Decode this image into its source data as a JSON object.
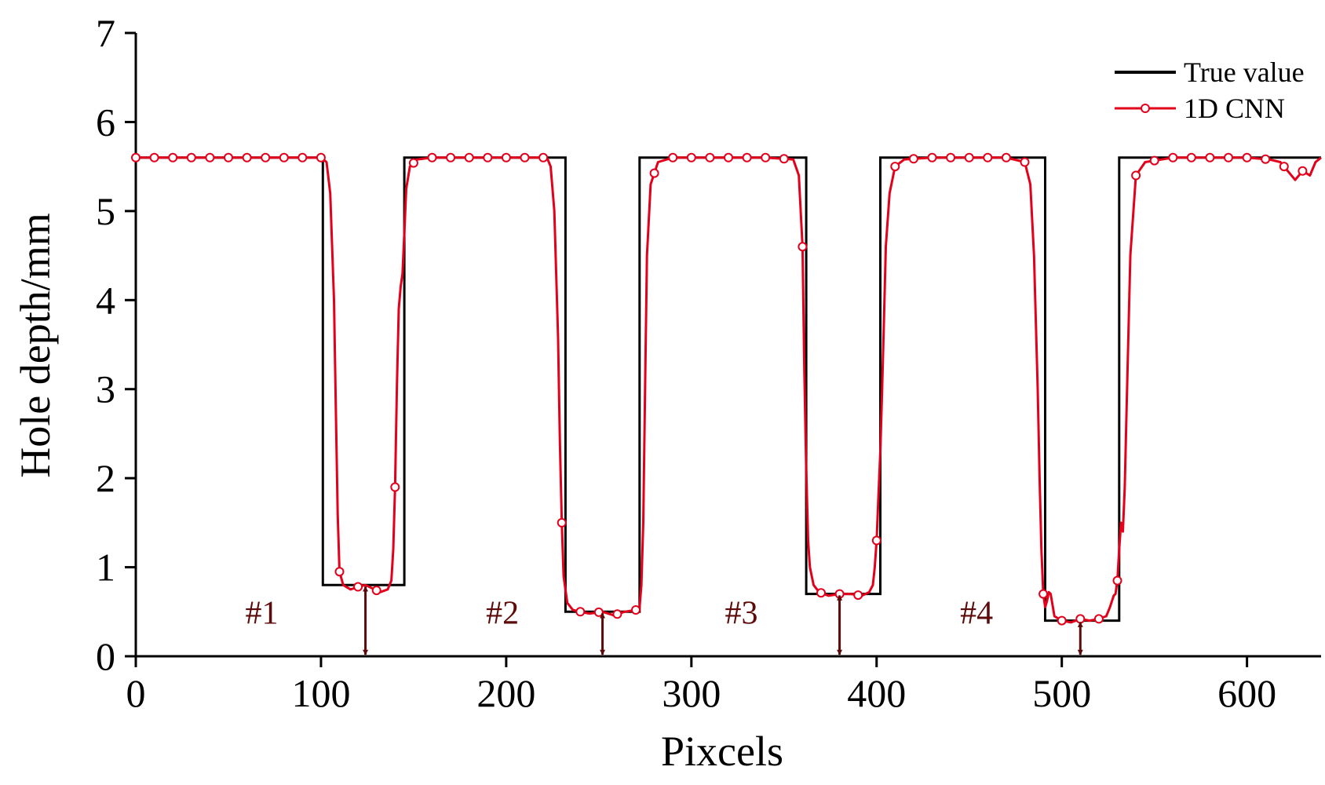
{
  "chart_data": {
    "type": "line",
    "title": "",
    "xlabel": "Pixcels",
    "ylabel": "Hole depth/mm",
    "xlim": [
      0,
      640
    ],
    "ylim": [
      0,
      7
    ],
    "xticks": [
      0,
      100,
      200,
      300,
      400,
      500,
      600
    ],
    "yticks": [
      0,
      1,
      2,
      3,
      4,
      5,
      6,
      7
    ],
    "grid": false,
    "legend": "top-right",
    "colors": {
      "true_value": "#000000",
      "cnn": "#e3001b",
      "annotation": "#5c0a0a"
    },
    "series": [
      {
        "name": "True value",
        "style": "step-line",
        "x": [
          0,
          101,
          101,
          145,
          145,
          232,
          232,
          272,
          272,
          362,
          362,
          402,
          402,
          491,
          491,
          531,
          531,
          640
        ],
        "y": [
          5.6,
          5.6,
          0.8,
          0.8,
          5.6,
          5.6,
          0.5,
          0.5,
          5.6,
          5.6,
          0.7,
          0.7,
          5.6,
          5.6,
          0.4,
          0.4,
          5.6,
          5.6
        ]
      },
      {
        "name": "1D CNN",
        "style": "line-with-circle-markers",
        "x": [
          0,
          100,
          103,
          105,
          107,
          108,
          109,
          110,
          112,
          116,
          120,
          124,
          128,
          132,
          136,
          138,
          139,
          140,
          141,
          142,
          143,
          144,
          145,
          146,
          148,
          152,
          160,
          200,
          222,
          224,
          226,
          228,
          229,
          230,
          231,
          233,
          236,
          240,
          245,
          252,
          258,
          264,
          270,
          272,
          273,
          274,
          275,
          276,
          278,
          282,
          290,
          340,
          355,
          358,
          360,
          361,
          362,
          363,
          364,
          366,
          369,
          374,
          380,
          386,
          392,
          396,
          398,
          399,
          400,
          401,
          402,
          403,
          404,
          405,
          407,
          410,
          415,
          430,
          470,
          480,
          483,
          485,
          487,
          488,
          489,
          490,
          491,
          492,
          493,
          494,
          496,
          500,
          505,
          510,
          515,
          520,
          524,
          526,
          528,
          529,
          530,
          531,
          532,
          533,
          534,
          535,
          537,
          540,
          545,
          560,
          600,
          612,
          618,
          622,
          626,
          630,
          634,
          637,
          640
        ],
        "y": [
          5.6,
          5.6,
          5.55,
          5.2,
          4.0,
          2.8,
          1.6,
          0.95,
          0.8,
          0.75,
          0.78,
          0.8,
          0.76,
          0.72,
          0.75,
          0.85,
          1.2,
          1.9,
          3.05,
          3.9,
          4.15,
          4.3,
          4.75,
          5.25,
          5.5,
          5.58,
          5.6,
          5.6,
          5.6,
          5.5,
          5.0,
          3.6,
          2.4,
          1.5,
          0.9,
          0.6,
          0.52,
          0.5,
          0.48,
          0.5,
          0.46,
          0.5,
          0.52,
          0.55,
          0.8,
          1.5,
          3.0,
          4.5,
          5.3,
          5.55,
          5.6,
          5.6,
          5.58,
          5.4,
          4.6,
          3.2,
          2.1,
          1.3,
          1.0,
          0.8,
          0.72,
          0.68,
          0.7,
          0.7,
          0.68,
          0.72,
          0.8,
          1.0,
          1.3,
          1.8,
          2.3,
          3.0,
          3.8,
          4.6,
          5.2,
          5.5,
          5.58,
          5.6,
          5.6,
          5.55,
          5.3,
          4.5,
          3.0,
          2.0,
          1.2,
          0.7,
          0.55,
          0.62,
          0.72,
          0.7,
          0.45,
          0.4,
          0.38,
          0.42,
          0.4,
          0.42,
          0.45,
          0.55,
          0.68,
          0.7,
          0.85,
          1.2,
          1.5,
          1.4,
          1.9,
          2.8,
          4.5,
          5.4,
          5.55,
          5.6,
          5.6,
          5.58,
          5.55,
          5.45,
          5.35,
          5.45,
          5.4,
          5.55,
          5.6
        ],
        "markers_x": [
          0,
          10,
          20,
          30,
          40,
          50,
          60,
          70,
          80,
          90,
          100,
          110,
          120,
          130,
          140,
          150,
          160,
          170,
          180,
          190,
          200,
          210,
          220,
          230,
          240,
          250,
          260,
          270,
          280,
          290,
          300,
          310,
          320,
          330,
          340,
          350,
          360,
          370,
          380,
          390,
          400,
          410,
          420,
          430,
          440,
          450,
          460,
          470,
          480,
          490,
          500,
          510,
          520,
          530,
          540,
          550,
          560,
          570,
          580,
          590,
          600,
          610,
          620,
          630
        ]
      }
    ],
    "annotations": [
      {
        "label": "#1",
        "x": 68,
        "y": 0.5,
        "arrow_x": 124,
        "arrow_from": 0.8,
        "arrow_to": 0
      },
      {
        "label": "#2",
        "x": 198,
        "y": 0.5,
        "arrow_x": 252,
        "arrow_from": 0.5,
        "arrow_to": 0
      },
      {
        "label": "#3",
        "x": 327,
        "y": 0.5,
        "arrow_x": 380,
        "arrow_from": 0.7,
        "arrow_to": 0
      },
      {
        "label": "#4",
        "x": 454,
        "y": 0.5,
        "arrow_x": 510,
        "arrow_from": 0.4,
        "arrow_to": 0
      }
    ]
  }
}
